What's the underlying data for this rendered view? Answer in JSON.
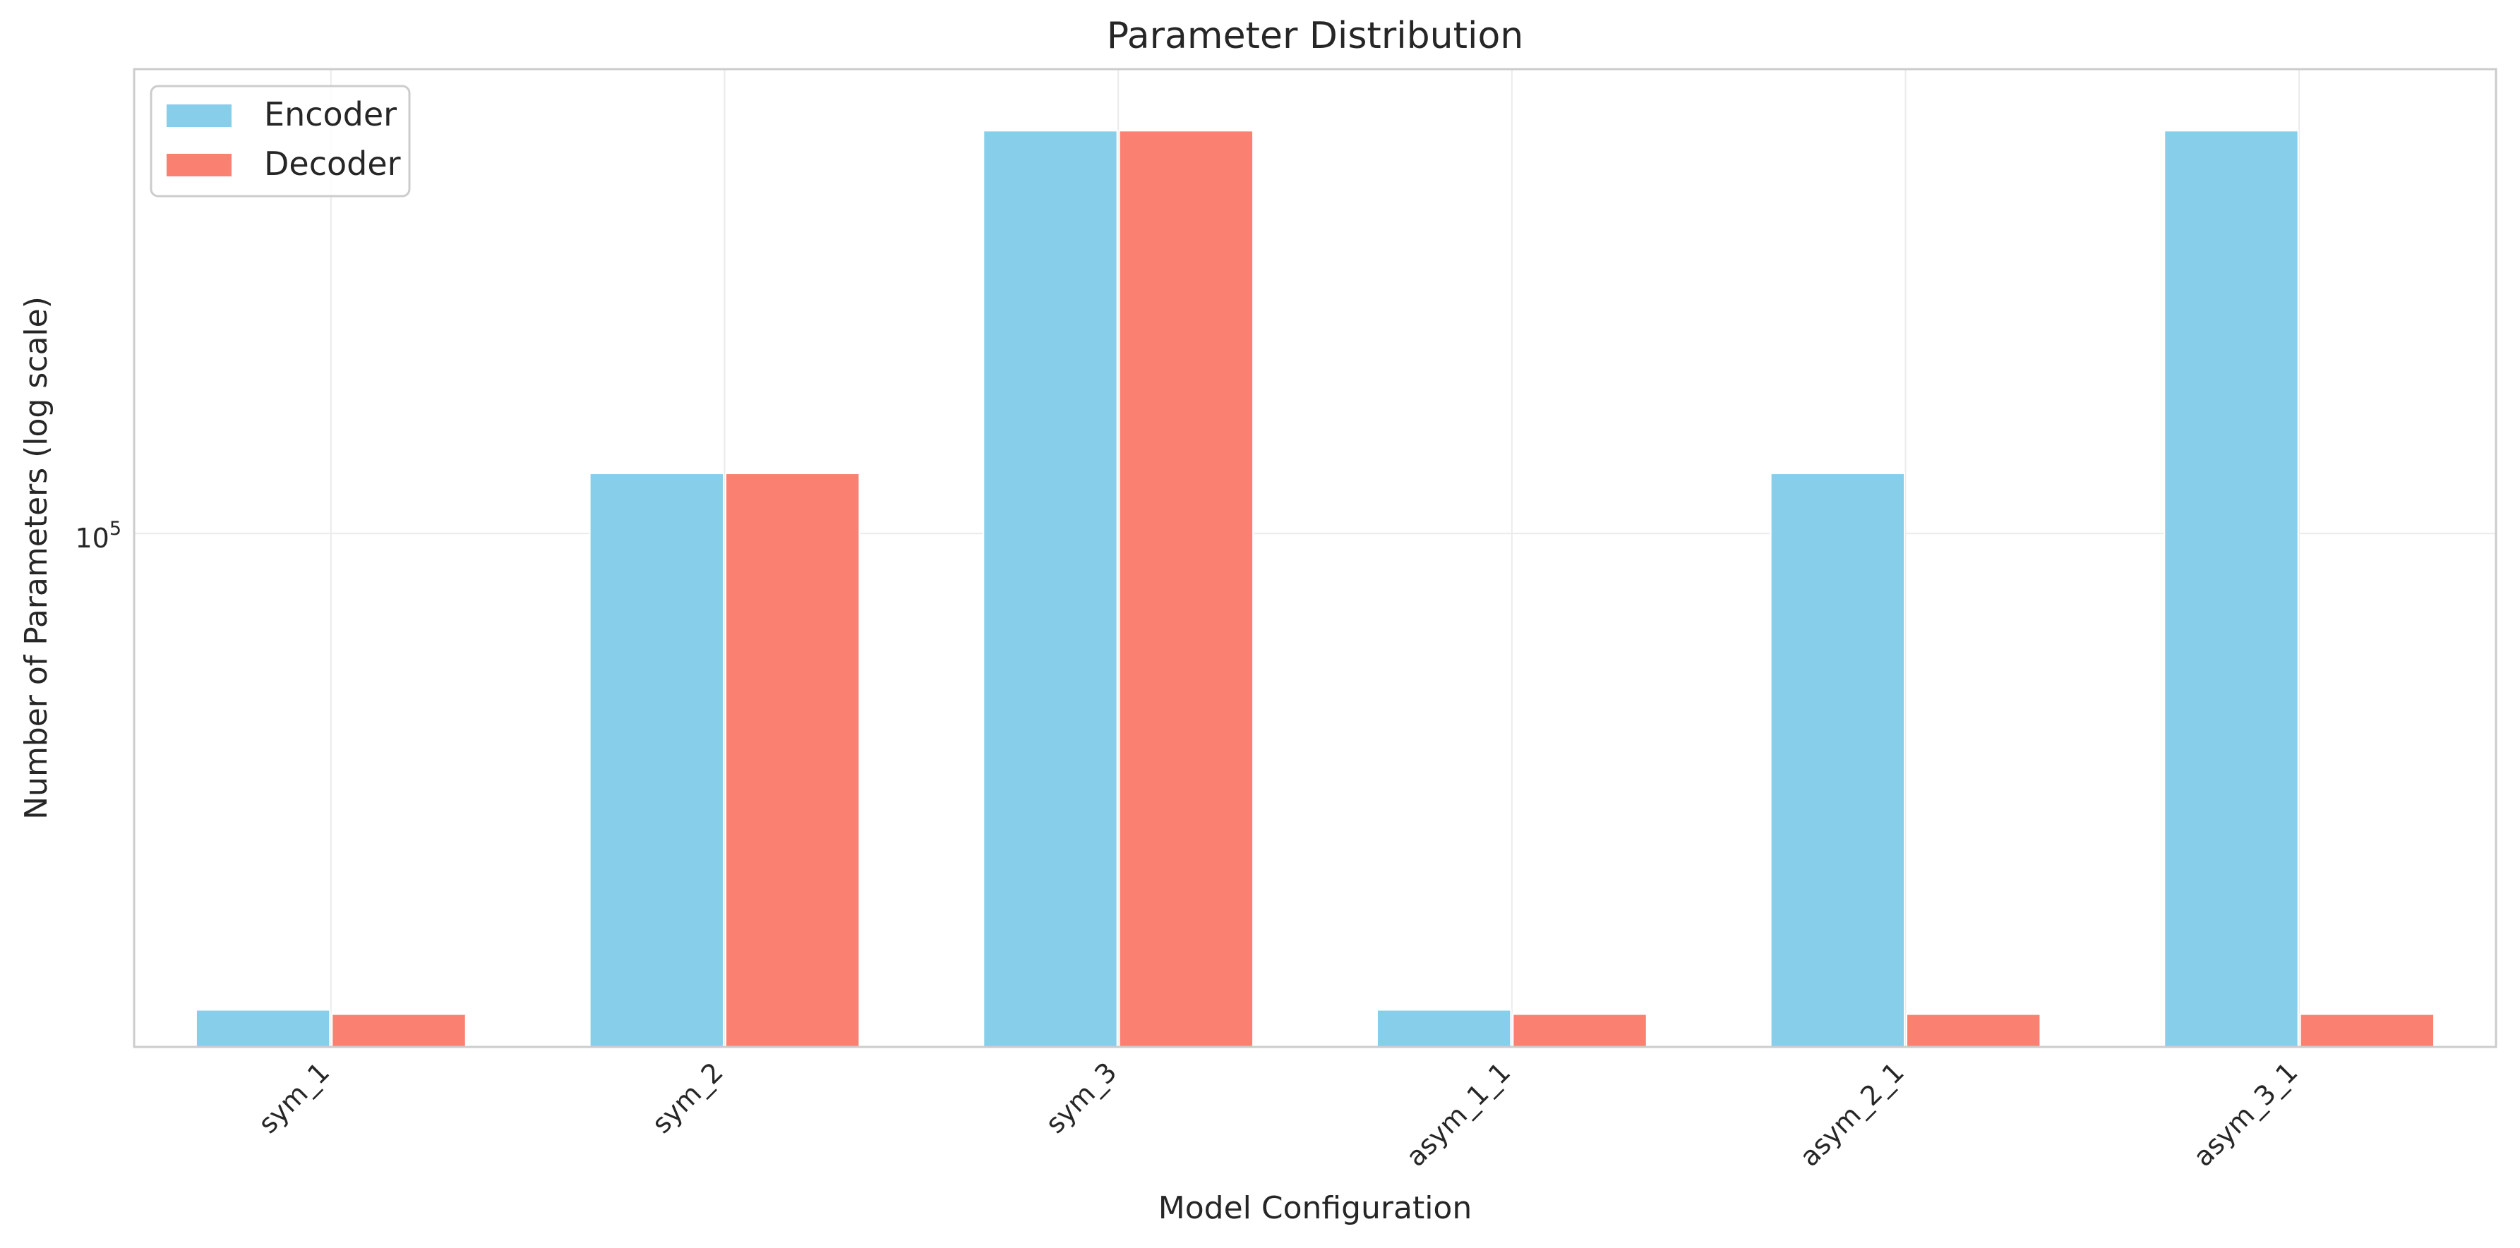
{
  "chart_data": {
    "type": "bar",
    "title": "Parameter Distribution",
    "xlabel": "Model Configuration",
    "ylabel": "Number of Parameters (log scale)",
    "yscale": "log",
    "ylim": [
      21000,
      410000
    ],
    "yticks": [
      {
        "value": 100000,
        "base": "10",
        "exp": "5"
      }
    ],
    "categories": [
      "sym_1",
      "sym_2",
      "sym_3",
      "asym_1_1",
      "asym_2_1",
      "asym_3_1"
    ],
    "series": [
      {
        "name": "Encoder",
        "color": "#87CEEB",
        "values": [
          23500,
          120000,
          340000,
          23500,
          120000,
          340000
        ]
      },
      {
        "name": "Decoder",
        "color": "#FA8072",
        "values": [
          23200,
          120000,
          340000,
          23200,
          23200,
          23200
        ]
      }
    ],
    "grid": true,
    "legend_position": "top-left",
    "xtick_rotation": -45
  }
}
